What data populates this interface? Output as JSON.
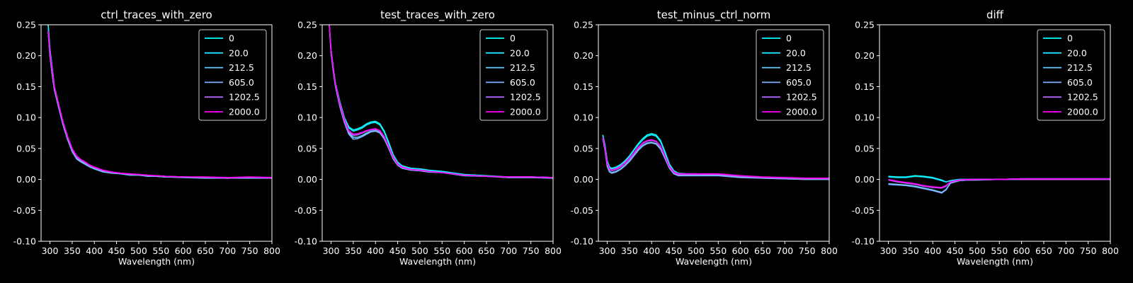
{
  "figure": {
    "background": "#000000",
    "foreground": "#ffffff"
  },
  "legend_labels": [
    "0",
    "20.0",
    "212.5",
    "605.0",
    "1202.5",
    "2000.0"
  ],
  "series_colors": [
    "#00ffff",
    "#1ae5ff",
    "#66ccff",
    "#80b3ff",
    "#b366ff",
    "#ff00ff"
  ],
  "chart_data": [
    {
      "type": "line",
      "title": "ctrl_traces_with_zero",
      "xlabel": "Wavelength (nm)",
      "ylabel": "",
      "xlim": [
        280,
        800
      ],
      "ylim": [
        -0.1,
        0.25
      ],
      "xticks": [
        300,
        350,
        400,
        450,
        500,
        550,
        600,
        650,
        700,
        750,
        800
      ],
      "yticks": [
        -0.1,
        -0.05,
        0.0,
        0.05,
        0.1,
        0.15,
        0.2,
        0.25
      ],
      "grid": false,
      "legend": "upper right",
      "x": [
        296,
        300,
        305,
        310,
        320,
        330,
        340,
        350,
        360,
        370,
        380,
        390,
        400,
        420,
        440,
        460,
        480,
        500,
        520,
        540,
        560,
        600,
        650,
        700,
        750,
        800
      ],
      "series": [
        {
          "name": "0",
          "values": [
            0.25,
            0.21,
            0.18,
            0.15,
            0.12,
            0.09,
            0.067,
            0.048,
            0.036,
            0.031,
            0.027,
            0.022,
            0.019,
            0.014,
            0.011,
            0.01,
            0.008,
            0.008,
            0.006,
            0.006,
            0.005,
            0.004,
            0.003,
            0.002,
            0.003,
            0.002
          ]
        },
        {
          "name": "20.0",
          "values": [
            0.25,
            0.21,
            0.18,
            0.15,
            0.12,
            0.09,
            0.066,
            0.047,
            0.035,
            0.03,
            0.026,
            0.021,
            0.018,
            0.013,
            0.011,
            0.009,
            0.007,
            0.007,
            0.006,
            0.005,
            0.004,
            0.004,
            0.003,
            0.002,
            0.003,
            0.002
          ]
        },
        {
          "name": "212.5",
          "values": [
            0.24,
            0.2,
            0.17,
            0.145,
            0.115,
            0.087,
            0.064,
            0.045,
            0.033,
            0.028,
            0.024,
            0.02,
            0.017,
            0.012,
            0.01,
            0.009,
            0.007,
            0.007,
            0.005,
            0.005,
            0.004,
            0.003,
            0.002,
            0.002,
            0.002,
            0.002
          ]
        },
        {
          "name": "605.0",
          "values": [
            0.24,
            0.2,
            0.17,
            0.145,
            0.115,
            0.088,
            0.065,
            0.046,
            0.034,
            0.029,
            0.025,
            0.021,
            0.018,
            0.013,
            0.011,
            0.009,
            0.008,
            0.007,
            0.006,
            0.005,
            0.004,
            0.004,
            0.003,
            0.002,
            0.003,
            0.002
          ]
        },
        {
          "name": "1202.5",
          "values": [
            0.24,
            0.2,
            0.175,
            0.148,
            0.118,
            0.09,
            0.067,
            0.048,
            0.036,
            0.031,
            0.027,
            0.022,
            0.019,
            0.014,
            0.011,
            0.01,
            0.008,
            0.008,
            0.006,
            0.006,
            0.005,
            0.004,
            0.003,
            0.002,
            0.003,
            0.002
          ]
        },
        {
          "name": "2000.0",
          "values": [
            0.24,
            0.205,
            0.178,
            0.15,
            0.12,
            0.092,
            0.069,
            0.05,
            0.038,
            0.032,
            0.028,
            0.023,
            0.02,
            0.015,
            0.012,
            0.01,
            0.009,
            0.008,
            0.007,
            0.006,
            0.005,
            0.004,
            0.004,
            0.003,
            0.004,
            0.003
          ]
        }
      ]
    },
    {
      "type": "line",
      "title": "test_traces_with_zero",
      "xlabel": "Wavelength (nm)",
      "ylabel": "",
      "xlim": [
        280,
        800
      ],
      "ylim": [
        -0.1,
        0.25
      ],
      "xticks": [
        300,
        350,
        400,
        450,
        500,
        550,
        600,
        650,
        700,
        750,
        800
      ],
      "yticks": [
        -0.1,
        -0.05,
        0.0,
        0.05,
        0.1,
        0.15,
        0.2,
        0.25
      ],
      "grid": false,
      "legend": "upper right",
      "x": [
        296,
        300,
        305,
        310,
        320,
        330,
        340,
        350,
        360,
        370,
        380,
        390,
        400,
        410,
        420,
        430,
        440,
        450,
        460,
        480,
        500,
        520,
        550,
        600,
        650,
        700,
        750,
        800
      ],
      "series": [
        {
          "name": "0",
          "values": [
            0.25,
            0.21,
            0.18,
            0.155,
            0.125,
            0.1,
            0.085,
            0.08,
            0.082,
            0.085,
            0.09,
            0.093,
            0.094,
            0.09,
            0.078,
            0.06,
            0.04,
            0.028,
            0.022,
            0.018,
            0.017,
            0.015,
            0.013,
            0.008,
            0.006,
            0.004,
            0.004,
            0.003
          ]
        },
        {
          "name": "20.0",
          "values": [
            0.25,
            0.21,
            0.18,
            0.155,
            0.124,
            0.099,
            0.083,
            0.078,
            0.08,
            0.083,
            0.088,
            0.091,
            0.092,
            0.088,
            0.076,
            0.058,
            0.039,
            0.027,
            0.021,
            0.017,
            0.016,
            0.014,
            0.012,
            0.007,
            0.005,
            0.004,
            0.004,
            0.003
          ]
        },
        {
          "name": "212.5",
          "values": [
            0.25,
            0.205,
            0.175,
            0.15,
            0.118,
            0.093,
            0.075,
            0.068,
            0.068,
            0.071,
            0.075,
            0.078,
            0.079,
            0.076,
            0.066,
            0.05,
            0.033,
            0.023,
            0.018,
            0.015,
            0.014,
            0.012,
            0.011,
            0.006,
            0.005,
            0.003,
            0.003,
            0.002
          ]
        },
        {
          "name": "605.0",
          "values": [
            0.25,
            0.205,
            0.175,
            0.15,
            0.117,
            0.092,
            0.073,
            0.065,
            0.066,
            0.069,
            0.073,
            0.077,
            0.078,
            0.075,
            0.065,
            0.05,
            0.033,
            0.023,
            0.018,
            0.015,
            0.014,
            0.012,
            0.011,
            0.006,
            0.005,
            0.003,
            0.003,
            0.002
          ]
        },
        {
          "name": "1202.5",
          "values": [
            0.25,
            0.208,
            0.178,
            0.152,
            0.12,
            0.095,
            0.077,
            0.071,
            0.072,
            0.075,
            0.078,
            0.08,
            0.081,
            0.078,
            0.068,
            0.052,
            0.035,
            0.024,
            0.019,
            0.016,
            0.015,
            0.013,
            0.011,
            0.007,
            0.005,
            0.004,
            0.004,
            0.003
          ]
        },
        {
          "name": "2000.0",
          "values": [
            0.25,
            0.21,
            0.18,
            0.154,
            0.122,
            0.097,
            0.079,
            0.073,
            0.074,
            0.076,
            0.079,
            0.081,
            0.082,
            0.079,
            0.069,
            0.053,
            0.036,
            0.025,
            0.02,
            0.016,
            0.015,
            0.013,
            0.011,
            0.007,
            0.005,
            0.004,
            0.004,
            0.003
          ]
        }
      ]
    },
    {
      "type": "line",
      "title": "test_minus_ctrl_norm",
      "xlabel": "Wavelength (nm)",
      "ylabel": "",
      "xlim": [
        280,
        800
      ],
      "ylim": [
        -0.1,
        0.25
      ],
      "xticks": [
        300,
        350,
        400,
        450,
        500,
        550,
        600,
        650,
        700,
        750,
        800
      ],
      "yticks": [
        -0.1,
        -0.05,
        0.0,
        0.05,
        0.1,
        0.15,
        0.2,
        0.25
      ],
      "grid": false,
      "legend": "upper right",
      "x": [
        290,
        295,
        300,
        305,
        310,
        320,
        330,
        340,
        350,
        360,
        370,
        380,
        390,
        400,
        410,
        420,
        430,
        440,
        450,
        460,
        480,
        500,
        550,
        600,
        650,
        700,
        750,
        800
      ],
      "series": [
        {
          "name": "0",
          "values": [
            0.072,
            0.055,
            0.03,
            0.02,
            0.018,
            0.02,
            0.024,
            0.03,
            0.038,
            0.048,
            0.058,
            0.066,
            0.072,
            0.074,
            0.072,
            0.063,
            0.045,
            0.025,
            0.014,
            0.01,
            0.009,
            0.009,
            0.008,
            0.005,
            0.003,
            0.002,
            0.001,
            0.001
          ]
        },
        {
          "name": "20.0",
          "values": [
            0.07,
            0.053,
            0.028,
            0.018,
            0.017,
            0.019,
            0.023,
            0.029,
            0.037,
            0.047,
            0.056,
            0.064,
            0.07,
            0.072,
            0.07,
            0.061,
            0.043,
            0.024,
            0.013,
            0.009,
            0.008,
            0.008,
            0.007,
            0.004,
            0.003,
            0.002,
            0.001,
            0.001
          ]
        },
        {
          "name": "212.5",
          "values": [
            0.066,
            0.048,
            0.022,
            0.013,
            0.011,
            0.013,
            0.017,
            0.023,
            0.03,
            0.039,
            0.048,
            0.055,
            0.059,
            0.06,
            0.058,
            0.05,
            0.035,
            0.019,
            0.01,
            0.007,
            0.007,
            0.007,
            0.007,
            0.004,
            0.002,
            0.001,
            0.0,
            0.0
          ]
        },
        {
          "name": "605.0",
          "values": [
            0.066,
            0.047,
            0.021,
            0.012,
            0.01,
            0.012,
            0.016,
            0.022,
            0.029,
            0.038,
            0.047,
            0.054,
            0.058,
            0.059,
            0.057,
            0.049,
            0.034,
            0.018,
            0.009,
            0.006,
            0.006,
            0.006,
            0.006,
            0.003,
            0.002,
            0.001,
            0.0,
            0.0
          ]
        },
        {
          "name": "1202.5",
          "values": [
            0.068,
            0.05,
            0.025,
            0.016,
            0.014,
            0.016,
            0.02,
            0.026,
            0.033,
            0.042,
            0.051,
            0.058,
            0.062,
            0.063,
            0.061,
            0.053,
            0.037,
            0.02,
            0.011,
            0.008,
            0.008,
            0.008,
            0.008,
            0.005,
            0.003,
            0.002,
            0.001,
            0.001
          ]
        },
        {
          "name": "2000.0",
          "values": [
            0.068,
            0.051,
            0.026,
            0.017,
            0.015,
            0.017,
            0.021,
            0.027,
            0.034,
            0.043,
            0.052,
            0.059,
            0.063,
            0.064,
            0.062,
            0.054,
            0.038,
            0.021,
            0.012,
            0.009,
            0.009,
            0.009,
            0.009,
            0.006,
            0.004,
            0.003,
            0.002,
            0.002
          ]
        }
      ]
    },
    {
      "type": "line",
      "title": "diff",
      "xlabel": "Wavelength (nm)",
      "ylabel": "",
      "xlim": [
        280,
        800
      ],
      "ylim": [
        -0.1,
        0.25
      ],
      "xticks": [
        300,
        350,
        400,
        450,
        500,
        550,
        600,
        650,
        700,
        750,
        800
      ],
      "yticks": [
        -0.1,
        -0.05,
        0.0,
        0.05,
        0.1,
        0.15,
        0.2,
        0.25
      ],
      "grid": false,
      "legend": "upper right",
      "x": [
        300,
        320,
        340,
        360,
        380,
        400,
        420,
        430,
        440,
        460,
        480,
        500,
        550,
        600,
        650,
        700,
        750,
        800
      ],
      "series": [
        {
          "name": "0",
          "values": [
            0.005,
            0.004,
            0.004,
            0.006,
            0.005,
            0.003,
            -0.001,
            -0.004,
            -0.002,
            0.0,
            0.0,
            0.0,
            0.0,
            0.001,
            0.001,
            0.001,
            0.001,
            0.001
          ]
        },
        {
          "name": "20.0",
          "values": [
            0.004,
            0.003,
            0.003,
            0.005,
            0.004,
            0.002,
            -0.002,
            -0.004,
            -0.002,
            0.0,
            0.0,
            0.0,
            0.0,
            0.001,
            0.001,
            0.001,
            0.001,
            0.001
          ]
        },
        {
          "name": "212.5",
          "values": [
            -0.007,
            -0.008,
            -0.009,
            -0.011,
            -0.014,
            -0.017,
            -0.021,
            -0.016,
            -0.006,
            -0.002,
            -0.001,
            -0.001,
            0.0,
            0.0,
            0.0,
            0.0,
            0.0,
            0.0
          ]
        },
        {
          "name": "605.0",
          "values": [
            -0.008,
            -0.009,
            -0.01,
            -0.012,
            -0.015,
            -0.018,
            -0.022,
            -0.017,
            -0.006,
            -0.002,
            -0.001,
            -0.001,
            0.0,
            0.0,
            0.0,
            0.0,
            0.0,
            0.0
          ]
        },
        {
          "name": "1202.5",
          "values": [
            -0.001,
            -0.004,
            -0.006,
            -0.008,
            -0.011,
            -0.013,
            -0.014,
            -0.011,
            -0.004,
            -0.001,
            -0.001,
            0.0,
            0.0,
            0.0,
            0.0,
            0.0,
            0.0,
            0.0
          ]
        },
        {
          "name": "2000.0",
          "values": [
            0.0,
            -0.003,
            -0.005,
            -0.007,
            -0.01,
            -0.012,
            -0.013,
            -0.01,
            -0.004,
            -0.001,
            0.0,
            0.0,
            0.0,
            0.001,
            0.001,
            0.001,
            0.001,
            0.001
          ]
        }
      ]
    }
  ]
}
